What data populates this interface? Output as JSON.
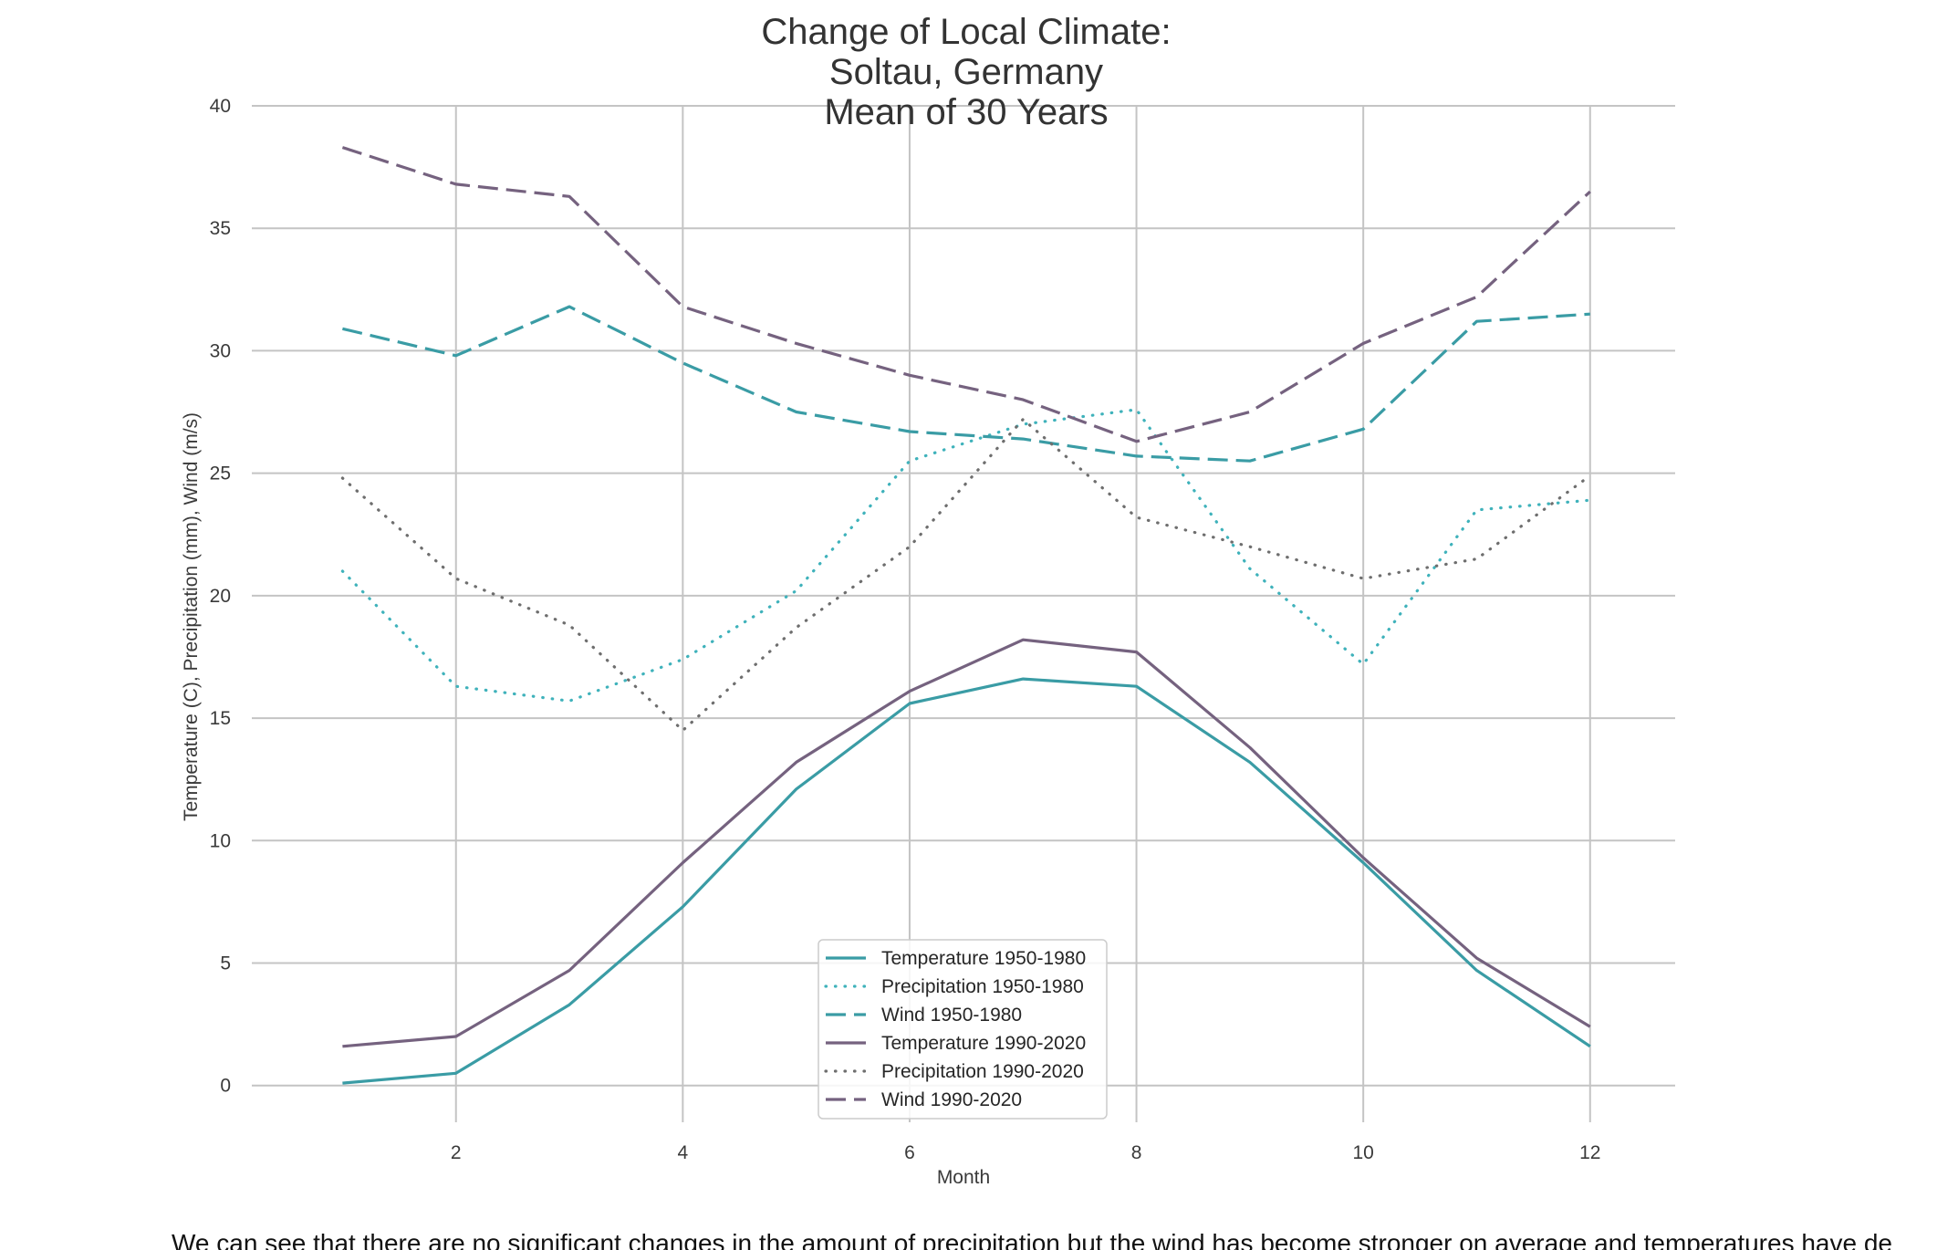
{
  "chart_data": {
    "type": "line",
    "title": [
      "Change of Local Climate:",
      "Soltau, Germany",
      "Mean of 30 Years"
    ],
    "xlabel": "Month",
    "ylabel": "Temperature (C), Precipitation (mm), Wind (m/s)",
    "xlim": [
      0.2,
      12.75
    ],
    "ylim": [
      -1.5,
      40
    ],
    "xticks": [
      2,
      4,
      6,
      8,
      10,
      12
    ],
    "yticks": [
      0,
      5,
      10,
      15,
      20,
      25,
      30,
      35,
      40
    ],
    "grid": true,
    "legend_position": "lower center",
    "x": [
      1,
      2,
      3,
      4,
      5,
      6,
      7,
      8,
      9,
      10,
      11,
      12
    ],
    "series": [
      {
        "name": "Temperature 1950-1980",
        "color": "#3a9ca5",
        "dash": "solid",
        "values": [
          0.1,
          0.5,
          3.3,
          7.3,
          12.1,
          15.6,
          16.6,
          16.3,
          13.2,
          9.1,
          4.7,
          1.6
        ]
      },
      {
        "name": "Precipitation 1950-1980",
        "color": "#3fb2bb",
        "dash": "dotted",
        "values": [
          21.0,
          16.3,
          15.7,
          17.4,
          20.2,
          25.5,
          27.0,
          27.6,
          21.1,
          17.2,
          23.5,
          23.9
        ]
      },
      {
        "name": "Wind 1950-1980",
        "color": "#3a9ca5",
        "dash": "dashed",
        "values": [
          30.9,
          29.8,
          31.8,
          29.5,
          27.5,
          26.7,
          26.4,
          25.7,
          25.5,
          26.8,
          31.2,
          31.5
        ]
      },
      {
        "name": "Temperature 1990-2020",
        "color": "#75627f",
        "dash": "solid",
        "values": [
          1.6,
          2.0,
          4.7,
          9.1,
          13.2,
          16.1,
          18.2,
          17.7,
          13.8,
          9.3,
          5.2,
          2.4
        ]
      },
      {
        "name": "Precipitation 1990-2020",
        "color": "#6e6e6e",
        "dash": "dotted",
        "values": [
          24.8,
          20.7,
          18.8,
          14.5,
          18.7,
          22.0,
          27.2,
          23.2,
          22.0,
          20.7,
          21.5,
          24.9
        ]
      },
      {
        "name": "Wind 1990-2020",
        "color": "#75627f",
        "dash": "dashed",
        "values": [
          38.3,
          36.8,
          36.3,
          31.8,
          30.3,
          29.0,
          28.0,
          26.3,
          27.5,
          30.3,
          32.2,
          36.5
        ]
      }
    ]
  },
  "caption": "We can see that there are no significant changes in the amount of precipitation but the wind has become stronger on average and temperatures have de"
}
